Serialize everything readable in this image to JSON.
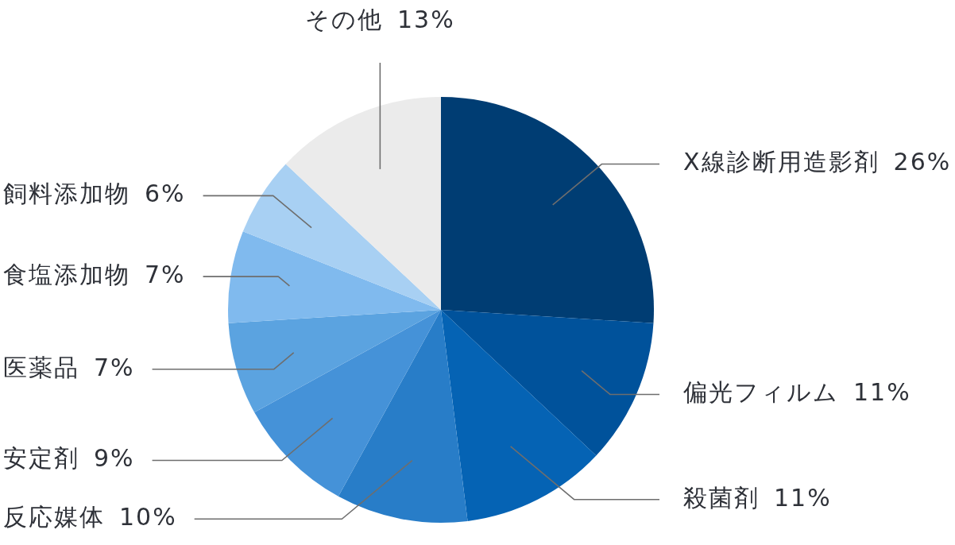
{
  "chart_data": {
    "type": "pie",
    "categories": [
      "X線診断用造影剤",
      "偏光フィルム",
      "殺菌剤",
      "反応媒体",
      "安定剤",
      "医薬品",
      "食塩添加物",
      "飼料添加物",
      "その他"
    ],
    "values": [
      26,
      11,
      11,
      10,
      9,
      7,
      7,
      6,
      13
    ],
    "value_labels": [
      "26%",
      "11%",
      "11%",
      "10%",
      "9%",
      "7%",
      "7%",
      "6%",
      "13%"
    ],
    "colors": [
      "#003d73",
      "#00529b",
      "#0563b4",
      "#287dc8",
      "#4592d8",
      "#5ba3e0",
      "#80baee",
      "#a8d0f3",
      "#ebebeb"
    ]
  }
}
